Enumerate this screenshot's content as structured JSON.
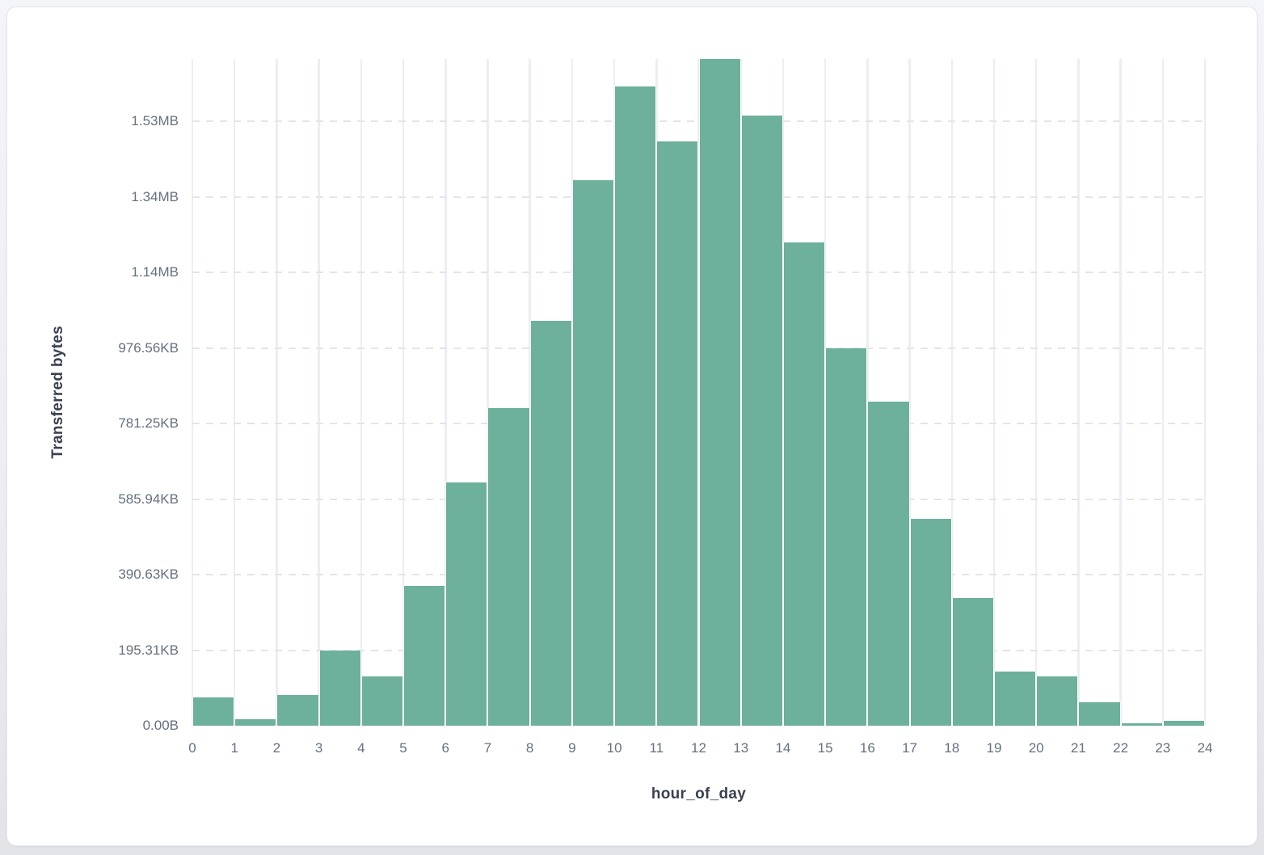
{
  "page": {
    "background_top": "#f4f5f8",
    "background_bottom": "#e3e4e8"
  },
  "card": {
    "background": "#ffffff",
    "border_color": "#e7e8ec"
  },
  "chart_data": {
    "type": "bar",
    "subtype": "histogram",
    "title": "",
    "xlabel": "hour_of_day",
    "ylabel": "Transferred bytes",
    "categories": [
      0,
      1,
      2,
      3,
      4,
      5,
      6,
      7,
      8,
      9,
      10,
      11,
      12,
      13,
      14,
      15,
      16,
      17,
      18,
      19,
      20,
      21,
      22,
      23
    ],
    "values_bytes": [
      75000,
      17500,
      81500,
      199000,
      130000,
      371000,
      645000,
      841000,
      1072000,
      1444000,
      1692000,
      1546000,
      1765000,
      1616000,
      1280000,
      1000000,
      858000,
      548000,
      338000,
      143500,
      129500,
      61500,
      6500,
      13800
    ],
    "x_tick_labels": [
      "0",
      "1",
      "2",
      "3",
      "4",
      "5",
      "6",
      "7",
      "8",
      "9",
      "10",
      "11",
      "12",
      "13",
      "14",
      "15",
      "16",
      "17",
      "18",
      "19",
      "20",
      "21",
      "22",
      "23",
      "24"
    ],
    "y_ticks": [
      {
        "bytes": 0,
        "label": "0.00B"
      },
      {
        "bytes": 200000,
        "label": "195.31KB"
      },
      {
        "bytes": 400000,
        "label": "390.63KB"
      },
      {
        "bytes": 600000,
        "label": "585.94KB"
      },
      {
        "bytes": 800000,
        "label": "781.25KB"
      },
      {
        "bytes": 1000000,
        "label": "976.56KB"
      },
      {
        "bytes": 1200000,
        "label": "1.14MB"
      },
      {
        "bytes": 1400000,
        "label": "1.34MB"
      },
      {
        "bytes": 1600000,
        "label": "1.53MB"
      }
    ],
    "xlim": [
      0,
      24
    ],
    "ylim_bytes": [
      0,
      1765000
    ],
    "bar_color": "#6db09b",
    "grid": {
      "vertical": "solid",
      "horizontal": "dashed"
    },
    "legend_position": "none"
  }
}
